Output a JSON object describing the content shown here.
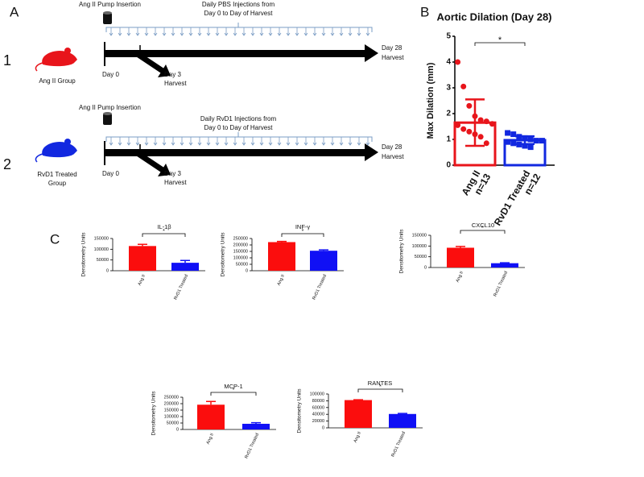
{
  "panel_labels": [
    "A",
    "B",
    "C"
  ],
  "diagram": {
    "rows": [
      {
        "number": "1",
        "mouse_color": "#e8151b",
        "group_label": [
          "Ang II Group"
        ],
        "pump": "Ang II Pump Insertion",
        "injections": [
          "Daily PBS Injections from",
          "Day 0 to Day of Harvest"
        ],
        "day0": "Day 0",
        "day3": [
          "Day 3",
          "Harvest"
        ],
        "day28": [
          "Day 28",
          "Harvest"
        ]
      },
      {
        "number": "2",
        "mouse_color": "#1228e0",
        "group_label": [
          "RvD1 Treated",
          "Group"
        ],
        "pump": "Ang II Pump Insertion",
        "injections": [
          "Daily RvD1 Injections from",
          "Day 0 to Day of Harvest"
        ],
        "day0": "Day 0",
        "day3": [
          "Day 3",
          "Harvest"
        ],
        "day28": [
          "Day 28",
          "Harvest"
        ]
      }
    ]
  },
  "chart_data": [
    {
      "type": "bar",
      "title": "Aortic Dilation (Day 28)",
      "ylabel": "Max Dilation (mm)",
      "categories": [
        "Ang II",
        "RvD1 Treated"
      ],
      "n_labels": [
        "n=13",
        "n=12"
      ],
      "values": [
        1.65,
        0.97
      ],
      "errors": [
        0.9,
        0.15
      ],
      "error_both": true,
      "colors": [
        "#e8151b",
        "#1228e0"
      ],
      "filled": false,
      "points": [
        [
          4.0,
          3.05,
          2.3,
          1.9,
          1.75,
          1.7,
          1.6,
          1.55,
          1.4,
          1.3,
          1.2,
          1.1,
          0.85
        ],
        [
          1.25,
          1.2,
          1.1,
          1.05,
          1.0,
          0.95,
          0.95,
          0.9,
          0.85,
          0.8,
          0.75,
          0.7
        ]
      ],
      "ylim": [
        0,
        5
      ],
      "yticks": [
        0,
        1,
        2,
        3,
        4,
        5
      ],
      "annotation": "*"
    },
    {
      "type": "bar",
      "title": "IL-1β",
      "ylabel": "Densitometry Units",
      "categories": [
        "Ang II",
        "RvD1 Treated"
      ],
      "values": [
        115000,
        37000
      ],
      "errors": [
        8000,
        11000
      ],
      "error_both": false,
      "colors": [
        "#fb0d0d",
        "#1010f5"
      ],
      "filled": true,
      "ylim": [
        0,
        150000
      ],
      "yticks": [
        0,
        50000,
        100000,
        150000
      ],
      "annotation": "*"
    },
    {
      "type": "bar",
      "title": "INF-γ",
      "ylabel": "Densitometry Units",
      "categories": [
        "Ang II",
        "RvD1 Treated"
      ],
      "values": [
        222000,
        155000
      ],
      "errors": [
        5000,
        7000
      ],
      "error_both": false,
      "colors": [
        "#fb0d0d",
        "#1010f5"
      ],
      "filled": true,
      "ylim": [
        0,
        250000
      ],
      "yticks": [
        0,
        50000,
        100000,
        150000,
        200000,
        250000
      ],
      "annotation": "*"
    },
    {
      "type": "bar",
      "title": "CXCL10",
      "ylabel": "Densitometry Units",
      "categories": [
        "Ang II",
        "RvD1 Treated"
      ],
      "values": [
        92000,
        20000
      ],
      "errors": [
        6000,
        2000
      ],
      "error_both": false,
      "colors": [
        "#fb0d0d",
        "#1010f5"
      ],
      "filled": true,
      "ylim": [
        0,
        150000
      ],
      "yticks": [
        0,
        50000,
        100000,
        150000
      ],
      "annotation": "*"
    },
    {
      "type": "bar",
      "title": "MCP-1",
      "ylabel": "Densitometry Units",
      "categories": [
        "Ang II",
        "RvD1 Treated"
      ],
      "values": [
        192000,
        44000
      ],
      "errors": [
        25000,
        8000
      ],
      "error_both": false,
      "colors": [
        "#fb0d0d",
        "#1010f5"
      ],
      "filled": true,
      "ylim": [
        0,
        250000
      ],
      "yticks": [
        0,
        50000,
        100000,
        150000,
        200000,
        250000
      ],
      "annotation": "*"
    },
    {
      "type": "bar",
      "title": "RANTES",
      "ylabel": "Densitometry Units",
      "categories": [
        "Ang II",
        "RvD1 Treated"
      ],
      "values": [
        82000,
        41000
      ],
      "errors": [
        1000,
        1500
      ],
      "error_both": false,
      "colors": [
        "#fb0d0d",
        "#1010f5"
      ],
      "filled": true,
      "ylim": [
        0,
        100000
      ],
      "yticks": [
        0,
        20000,
        40000,
        60000,
        80000,
        100000
      ],
      "annotation": "*"
    }
  ]
}
